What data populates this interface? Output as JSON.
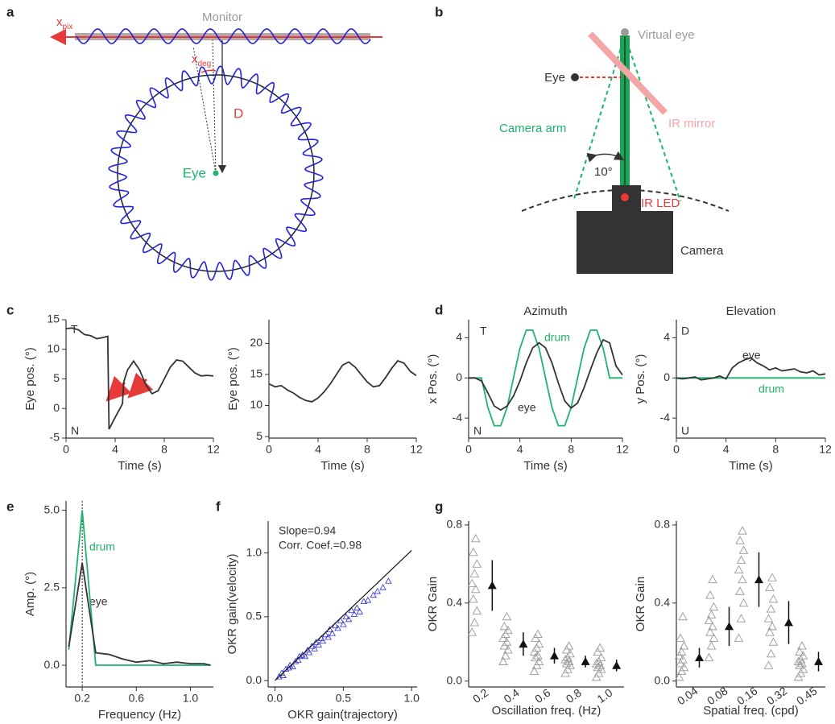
{
  "panel_labels": [
    "a",
    "b",
    "c",
    "d",
    "e",
    "f",
    "g"
  ],
  "diagram_a": {
    "monitor": "Monitor",
    "x_pix": "x",
    "x_pix_sub": "pix",
    "x_deg": "x",
    "x_deg_sub": "deg",
    "distance": "D",
    "eye": "Eye"
  },
  "diagram_b": {
    "virtual_eye": "Virtual eye",
    "eye": "Eye",
    "ir_mirror": "IR mirror",
    "camera_arm": "Camera arm",
    "angle": "10°",
    "ir_led": "IR LED",
    "camera": "Camera"
  },
  "chart_data": [
    {
      "type": "line",
      "xlabel": "Time (s)",
      "ylabel": "Eye pos. (°)",
      "xlim": [
        0,
        12
      ],
      "xticks": [
        0,
        4,
        8,
        12
      ],
      "ylim": [
        -5,
        15
      ],
      "yticks": [
        -5,
        0,
        5,
        10,
        15
      ],
      "x": [
        0,
        0.5,
        1,
        1.5,
        2,
        2.5,
        3,
        3.4,
        3.5,
        4,
        4.6,
        4.7,
        5,
        5.5,
        6,
        6.5,
        7,
        7.5,
        8,
        8.5,
        9,
        9.5,
        10,
        10.5,
        11,
        11.5,
        12
      ],
      "series": [
        {
          "name": "eye",
          "color": "#333333",
          "values": [
            13.5,
            13.6,
            13.3,
            12.5,
            12.3,
            11.8,
            12,
            12.2,
            -3.5,
            -1.5,
            0.8,
            4.5,
            6.5,
            8,
            6.5,
            4,
            2.5,
            3,
            5,
            7,
            8.2,
            8,
            7,
            6,
            5.5,
            5.6,
            5.5
          ]
        }
      ],
      "annotations": [
        {
          "text": "T",
          "color": "#333333"
        },
        {
          "text": "N",
          "color": "#333333"
        }
      ]
    },
    {
      "type": "line",
      "xlabel": "Time (s)",
      "ylabel": "Eye pos. (°)",
      "xlim": [
        0,
        12
      ],
      "xticks": [
        0,
        4,
        8,
        12
      ],
      "ylim": [
        4.75,
        23.8
      ],
      "yticks": [
        5,
        10,
        15,
        20
      ],
      "x": [
        0,
        0.5,
        1,
        1.5,
        2,
        2.5,
        3,
        3.5,
        4,
        4.5,
        5,
        5.5,
        6,
        6.5,
        7,
        7.5,
        8,
        8.5,
        9,
        9.5,
        10,
        10.5,
        11,
        11.5,
        12
      ],
      "series": [
        {
          "name": "eye",
          "color": "#333333",
          "values": [
            13.5,
            13,
            13.2,
            12.5,
            12,
            11.3,
            10.8,
            10.6,
            11.2,
            12.2,
            13.5,
            15,
            16.5,
            17,
            16.2,
            15,
            13.8,
            13,
            13.2,
            14.5,
            16,
            17.2,
            16.8,
            15.5,
            14.8
          ]
        }
      ],
      "annotations": []
    },
    {
      "type": "line",
      "title": "Azimuth",
      "xlabel": "Time (s)",
      "ylabel": "x Pos. (°)",
      "xlim": [
        0,
        12
      ],
      "xticks": [
        0,
        4,
        8,
        12
      ],
      "ylim": [
        -6,
        5.8
      ],
      "yticks": [
        -4,
        0,
        4
      ],
      "x": [
        0,
        0.5,
        1,
        1.5,
        2,
        2.5,
        3,
        3.5,
        4,
        4.5,
        5,
        5.5,
        6,
        6.5,
        7,
        7.5,
        8,
        8.5,
        9,
        9.5,
        10,
        10.5,
        11,
        11.5,
        12
      ],
      "series": [
        {
          "name": "drum",
          "color": "#1fb36b",
          "values": [
            0,
            0,
            0,
            -2.94,
            -4.76,
            -4.76,
            -2.94,
            0,
            2.94,
            4.76,
            4.76,
            2.94,
            0,
            -2.94,
            -4.76,
            -4.76,
            -2.94,
            0,
            2.94,
            4.76,
            4.76,
            2.94,
            0,
            0,
            0
          ]
        },
        {
          "name": "eye",
          "color": "#333333",
          "values": [
            0,
            0,
            -0.3,
            -1.5,
            -2.8,
            -3.2,
            -2.8,
            -1.8,
            -0.3,
            1.5,
            3,
            3.5,
            3,
            1.5,
            -0.5,
            -2.3,
            -3,
            -2.5,
            -1,
            0.8,
            2.5,
            3.8,
            3.5,
            1.2,
            0.3
          ]
        }
      ],
      "annotations": [
        {
          "text": "T",
          "color": "#333333"
        },
        {
          "text": "N",
          "color": "#333333"
        },
        {
          "text": "drum",
          "color": "#1fb36b"
        },
        {
          "text": "eye",
          "color": "#333333"
        }
      ]
    },
    {
      "type": "line",
      "title": "Elevation",
      "xlabel": "Time (s)",
      "ylabel": "y Pos. (°)",
      "xlim": [
        0,
        12
      ],
      "xticks": [
        0,
        4,
        8,
        12
      ],
      "ylim": [
        -6,
        5.8
      ],
      "yticks": [
        -4,
        0,
        4
      ],
      "x": [
        0,
        0.5,
        1,
        1.5,
        2,
        2.5,
        3,
        3.5,
        4,
        4.5,
        5,
        5.5,
        6,
        6.5,
        7,
        7.5,
        8,
        8.5,
        9,
        9.5,
        10,
        10.5,
        11,
        11.5,
        12
      ],
      "series": [
        {
          "name": "drum",
          "color": "#1fb36b",
          "values": [
            0,
            0,
            0,
            0,
            0,
            0,
            0,
            0,
            0,
            0,
            0,
            0,
            0,
            0,
            0,
            0,
            0,
            0,
            0,
            0,
            0,
            0,
            0,
            0,
            0
          ]
        },
        {
          "name": "eye",
          "color": "#333333",
          "values": [
            0,
            -0.1,
            0,
            0.1,
            -0.2,
            -0.1,
            0,
            0.2,
            -0.1,
            1,
            1.5,
            1.8,
            2,
            1.5,
            1.2,
            0.8,
            1,
            0.7,
            0.8,
            0.9,
            0.6,
            0.5,
            0.7,
            0.3,
            0.4
          ]
        }
      ],
      "annotations": [
        {
          "text": "D",
          "color": "#333333"
        },
        {
          "text": "U",
          "color": "#333333"
        },
        {
          "text": "eye",
          "color": "#333333"
        },
        {
          "text": "drum",
          "color": "#1fb36b"
        }
      ]
    },
    {
      "type": "line",
      "xlabel": "Frequency (Hz)",
      "ylabel": "Amp. (°)",
      "xlim": [
        0.08,
        1.17
      ],
      "xticks": [
        0.2,
        0.6,
        {
          "value": 1,
          "label": "1.0"
        }
      ],
      "ylim": [
        -0.7,
        5.3
      ],
      "yticks": [
        {
          "value": 0,
          "label": "0.0"
        },
        2.5,
        {
          "value": 5,
          "label": "5.0"
        }
      ],
      "vline": 0.2,
      "x": [
        0.1,
        0.2,
        0.3,
        0.4,
        0.5,
        0.6,
        0.7,
        0.8,
        0.9,
        1.0,
        1.1,
        1.15
      ],
      "series": [
        {
          "name": "drum",
          "color": "#1fb36b",
          "values": [
            0.5,
            5,
            0,
            0,
            0,
            0,
            0,
            0,
            0,
            0,
            0,
            0
          ]
        },
        {
          "name": "eye",
          "color": "#333333",
          "values": [
            0.6,
            3.3,
            0.4,
            0.35,
            0.2,
            0.1,
            0.15,
            0.05,
            0.1,
            0.05,
            0.05,
            0
          ]
        }
      ],
      "annotations": [
        {
          "text": "drum",
          "color": "#1fb36b"
        },
        {
          "text": "eye",
          "color": "#333333"
        }
      ]
    },
    {
      "type": "scatter",
      "xlabel": "OKR gain(trajectory)",
      "ylabel": "OKR gain(velocity)",
      "xlim": [
        -0.05,
        1.04
      ],
      "xticks": [
        {
          "value": 0,
          "label": "0.0"
        },
        0.5,
        {
          "value": 1,
          "label": "1.0"
        }
      ],
      "ylim": [
        -0.05,
        1.25
      ],
      "yticks": [
        {
          "value": 0,
          "label": "0.0"
        },
        0.5,
        {
          "value": 1,
          "label": "1.0"
        }
      ],
      "color": "#2b2bd6",
      "x": [
        0.03,
        0.05,
        0.06,
        0.08,
        0.1,
        0.11,
        0.13,
        0.15,
        0.17,
        0.18,
        0.2,
        0.22,
        0.24,
        0.25,
        0.27,
        0.29,
        0.3,
        0.32,
        0.34,
        0.35,
        0.37,
        0.39,
        0.4,
        0.42,
        0.44,
        0.46,
        0.48,
        0.5,
        0.52,
        0.54,
        0.56,
        0.58,
        0.6,
        0.62,
        0.65,
        0.68,
        0.72,
        0.75,
        0.79,
        0.83
      ],
      "values": [
        0.03,
        0.06,
        0.04,
        0.09,
        0.1,
        0.12,
        0.11,
        0.15,
        0.16,
        0.19,
        0.2,
        0.19,
        0.24,
        0.22,
        0.27,
        0.25,
        0.3,
        0.28,
        0.33,
        0.31,
        0.36,
        0.34,
        0.4,
        0.37,
        0.43,
        0.41,
        0.47,
        0.44,
        0.5,
        0.48,
        0.55,
        0.52,
        0.57,
        0.54,
        0.62,
        0.63,
        0.67,
        0.7,
        0.73,
        0.78
      ],
      "fit": {
        "x": [
          0,
          1.0
        ],
        "values": [
          0,
          1.02
        ]
      },
      "annotations": [
        {
          "text": "Slope=0.94",
          "color": "#333333"
        },
        {
          "text": "Corr. Coef.=0.98",
          "color": "#333333"
        }
      ]
    },
    {
      "type": "strip",
      "xlabel": "Oscillation freq. (Hz)",
      "ylabel": "OKR Gain",
      "ylim": [
        -0.03,
        0.82
      ],
      "yticks": [
        {
          "value": 0,
          "label": "0.0"
        },
        0.4,
        0.8
      ],
      "categories": [
        "0.2",
        "0.4",
        "0.6",
        "0.8",
        "1.0"
      ],
      "points": [
        [
          0.25,
          0.3,
          0.36,
          0.42,
          0.47,
          0.5,
          0.55,
          0.6,
          0.66,
          0.73
        ],
        [
          0.1,
          0.13,
          0.16,
          0.18,
          0.2,
          0.22,
          0.24,
          0.26,
          0.28,
          0.33
        ],
        [
          0.05,
          0.08,
          0.1,
          0.12,
          0.13,
          0.15,
          0.17,
          0.19,
          0.22,
          0.24
        ],
        [
          0.04,
          0.06,
          0.08,
          0.09,
          0.1,
          0.11,
          0.12,
          0.14,
          0.16,
          0.18
        ],
        [
          0.02,
          0.04,
          0.06,
          0.07,
          0.08,
          0.09,
          0.1,
          0.12,
          0.15,
          0.17
        ]
      ],
      "means": [
        0.49,
        0.19,
        0.13,
        0.1,
        0.08
      ],
      "errors": [
        0.13,
        0.06,
        0.04,
        0.03,
        0.03
      ],
      "annotations": []
    },
    {
      "type": "strip",
      "xlabel": "Spatial freq. (cpd)",
      "ylabel": "OKR Gain",
      "ylim": [
        -0.03,
        0.82
      ],
      "yticks": [
        {
          "value": 0,
          "label": "0.0"
        },
        0.4,
        0.8
      ],
      "categories": [
        "0.04",
        "0.08",
        "0.16",
        "0.32",
        "0.45"
      ],
      "points": [
        [
          0.02,
          0.05,
          0.07,
          0.09,
          0.11,
          0.13,
          0.15,
          0.18,
          0.22,
          0.33
        ],
        [
          0.12,
          0.18,
          0.22,
          0.25,
          0.28,
          0.31,
          0.34,
          0.38,
          0.44,
          0.52
        ],
        [
          0.22,
          0.32,
          0.4,
          0.46,
          0.52,
          0.57,
          0.62,
          0.67,
          0.72,
          0.77
        ],
        [
          0.08,
          0.14,
          0.2,
          0.25,
          0.28,
          0.32,
          0.37,
          0.42,
          0.48,
          0.53
        ],
        [
          0.02,
          0.04,
          0.06,
          0.08,
          0.09,
          0.1,
          0.11,
          0.13,
          0.15,
          0.18
        ]
      ],
      "means": [
        0.12,
        0.28,
        0.52,
        0.3,
        0.1
      ],
      "errors": [
        0.05,
        0.1,
        0.14,
        0.11,
        0.05
      ],
      "annotations": []
    }
  ]
}
